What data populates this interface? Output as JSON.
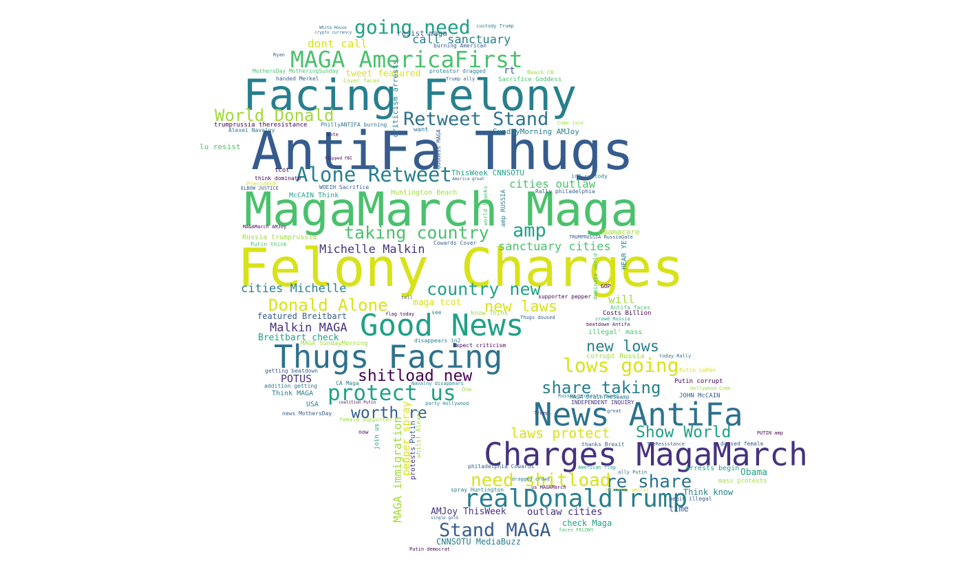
{
  "palette": {
    "background": "#ffffff",
    "yellow": "#d8e219",
    "lime": "#a0da39",
    "green": "#4ac16d",
    "teal": "#1fa187",
    "cyan": "#277f8e",
    "blue": "#365c8d",
    "indigo": "#46327e",
    "purple": "#440154"
  },
  "words": {
    "facing_felony": "Facing Felony",
    "antifa_thugs": "AntiFa Thugs",
    "magamarch_maga": "MagaMarch Maga",
    "felony_charges": "Felony Charges",
    "good_news": "Good News",
    "thugs_facing": "Thugs Facing",
    "news_antifa": "News AntiFa",
    "charges_magamarch": "Charges MagaMarch",
    "realdonaldtrump": "realDonaldTrump",
    "maga_americafirst": "MAGA AmericaFirst",
    "going_need": "going need",
    "retweet_stand": "Retweet Stand",
    "alone_retweet": "Alone Retweet",
    "world_donald": "World Donald",
    "taking_country": "taking country",
    "country_new": "country new",
    "donald_alone": "Donald Alone",
    "protect_us": "protect us",
    "lows_going": "lows going",
    "share_taking": "share taking",
    "re_share": "re share",
    "need_shitload": "need shitload",
    "stand_maga": "Stand MAGA",
    "laws_protect": "laws protect",
    "show_world": "Show World",
    "shitload_new": "shitload new",
    "worth_re": "worth re",
    "amp": "amp",
    "new_lows": "new lows",
    "new_laws": "new laws",
    "michelle_malkin": "Michelle Malkin",
    "cities_michelle": "cities Michelle",
    "malkin_maga": "Malkin MAGA",
    "sanctuary_cities": "sanctuary cities",
    "cities_outlaw": "cities outlaw",
    "call_sanctuary": "call sanctuary",
    "dont_call": "dont call",
    "tweet_featured": "tweet featured",
    "breitbart_check": "Breitbart check",
    "featured_breitbart": "featured Breitbart",
    "potus": "POTUS",
    "amjoy_thisweek": "AMJoy ThisWeek",
    "outlaw_cities": "outlaw cities",
    "cnnsotu_mediabuzz": "CNNSOTU MediaBuzz",
    "obama": "Obama",
    "maga_tcot": "maga tcot",
    "will": "will",
    "rt": "rt",
    "think_know": "Think know",
    "time": "time",
    "arrests_begin": "arrests begin",
    "check_maga": "check Maga",
    "maga_immigration": "MAGA immigration",
    "resist_maga": "resist maga",
    "lu_resist": "lu resist",
    "russia_trumprussia": "Russia trumprussia",
    "sundaymorning_amjoy": "SundayMorning AMJoy",
    "thisweek_cnnsotu": "ThisWeek CNNSOTU",
    "huntington_beach": "Huntington Beach",
    "mccain_think": "McCAIN Think",
    "costs_billion": "Costs Billion",
    "illegal_mass": "illegal' mass",
    "corrupt_russia": "corrupt Russia",
    "putin_corrupt": "Putin corrupt",
    "john_mccain": "JOHN McCAIN",
    "independent_inquiry": "INDEPENDENT INQUIRY",
    "maga_drainthesawamp": "MAGA DrainTheSwamp",
    "russia_protests_tweet": "Russia protests tweet",
    "thanks_brexit": "thanks Brexit",
    "mass_protests": "mass protests",
    "doused_female": "doused female",
    "begin_illegal": "begin illegal",
    "philadelphia_cowards": "philadelphia Cowards",
    "spray_huntington": "spray Huntington",
    "american_flag": "American flag",
    "ally_putin": "ally Putin",
    "us_magamarch": "us MAGAMarch",
    "obamacare": "Obamacare",
    "trumprussia_trprussia_gate": "TRUMPRUSSIA RussiaGate",
    "rally_philadelphia": "Rally philadelphia",
    "in2_custody": "in2 custody",
    "maga_sundaymorning": "MAGA SundayMorning",
    "think_maga": "Think MAGA",
    "usa": "USA",
    "ca_maga": "CA Maga",
    "getting_beatdown": "getting beatdown",
    "addition_getting": "addition getting",
    "news_mothersday": "news MothersDay",
    "female_supporter": "female supporter",
    "navalny_disappears": "Navalny disappears",
    "party_hollywood": "party Hollywood",
    "disappears_in2": "disappears in2",
    "expect_criticism": "Expect criticism",
    "know_think": "know Think",
    "thugs_doused": "Thugs doused",
    "supporter_pepper": "supporter pepper",
    "beatdown_antifa": "beatdown Antifa",
    "crowd_russia": "crowd Russia",
    "antifa_faces": "Antifa faces",
    "gop": "GOP",
    "today_rally": "today Rally",
    "putin_lepen": "Putin LePen",
    "hollywood_come": "Hollywood Come",
    "putin_amp": "PUTIN amp",
    "the_resistance": "TheResistance",
    "protests_whilst": "protests whilst",
    "dragged_crowd": "dragged crowd",
    "faces_felony": "faces FELONY",
    "putin_democrat": "Putin democrat",
    "sacrifice_goddess": "Sacrifice Goddess",
    "beach_ca": "Beach CA",
    "protestor_dragged": "protestor dragged",
    "handed_merkel": "handed Merkel",
    "cover_faces": "Cover faces",
    "mothersday_motheringsunday": "MothersDay MotheringSunday",
    "burning_american": "burning American",
    "trumprussia_theresistance": "trumprussia theresistance",
    "alexei_navalny": "Alexei Navalny",
    "phillyantifa_burning": "PhillyANTIFA burning",
    "want": "want",
    "vote": "vote",
    "tcot": "tcot",
    "think_dominate": "think dominate",
    "president": "President",
    "woeih_sacrifice": "WOEIH Sacrifice",
    "elbow_justice": "ELBOW JUSTICE",
    "magamarch_amjoy": "MAGAMarch AMJoy",
    "putin_think": "Putin think",
    "cowards_cover": "Cowards Cover",
    "flag_today": "flag today",
    "see": "see",
    "tell": "tell",
    "come_join": "Come join",
    "criticism_arrests": "criticism arrests",
    "goddess_maga": "Goddess MAGA",
    "amp_russia": "amp RUSSIA",
    "world_thanks": "world thanks",
    "hear_ye": "HEAR YE",
    "dominate_world": "dominate world",
    "one": "One",
    "now": "now",
    "join_us": "join us",
    "whilst_alexei": "whilst Alexei",
    "pepper_spray": "pepper spray",
    "putin": "Putin",
    "protests": "protests",
    "flipped_fbi": "flipped FBI",
    "coalition_putin": "coalition Putin",
    "custody_trump": "custody Trump",
    "white_house": "White House",
    "crypto_currency": "crypto currency",
    "trump_ally": "Trump ally",
    "ryan": "Ryan",
    "trump": "Trump",
    "great": "great",
    "america_great": "America great",
    "single_gold": "single gold"
  }
}
